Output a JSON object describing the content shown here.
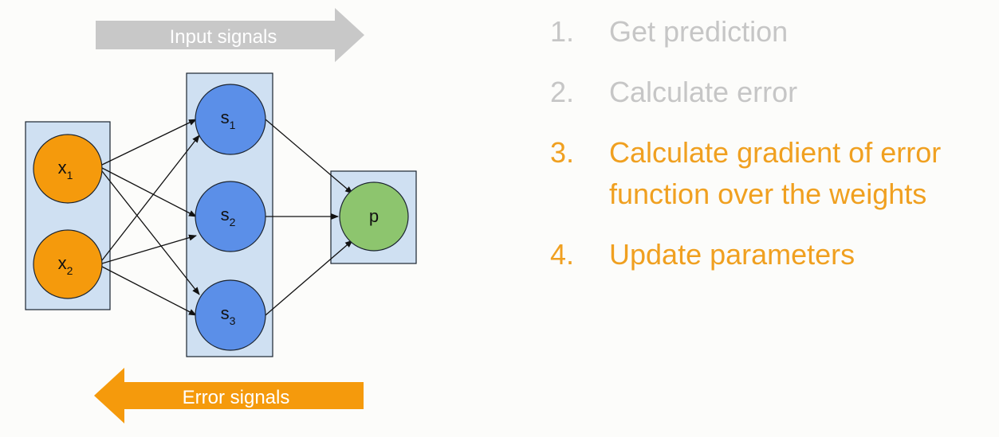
{
  "colors": {
    "background": "#fcfcfa",
    "layer_box_fill": "#cfe0f2",
    "layer_box_stroke": "#1b2430",
    "input_node": "#f59a0c",
    "hidden_node": "#5b8fe8",
    "output_node": "#8dc56e",
    "input_arrow": "#c8c8c8",
    "error_arrow": "#f59a0c",
    "step_inactive": "#c6c6c6",
    "step_active": "#f0a020"
  },
  "arrows": {
    "input_signals": "Input signals",
    "error_signals": "Error signals"
  },
  "nodes": {
    "x1": {
      "base": "x",
      "sub": "1"
    },
    "x2": {
      "base": "x",
      "sub": "2"
    },
    "s1": {
      "base": "s",
      "sub": "1"
    },
    "s2": {
      "base": "s",
      "sub": "2"
    },
    "s3": {
      "base": "s",
      "sub": "3"
    },
    "p": {
      "base": "p",
      "sub": ""
    }
  },
  "steps": [
    {
      "num": "1.",
      "text": "Get prediction",
      "active": false
    },
    {
      "num": "2.",
      "text": "Calculate error",
      "active": false
    },
    {
      "num": "3.",
      "text": "Calculate gradient of error function over the weights",
      "active": true
    },
    {
      "num": "4.",
      "text": "Update parameters",
      "active": true
    }
  ]
}
